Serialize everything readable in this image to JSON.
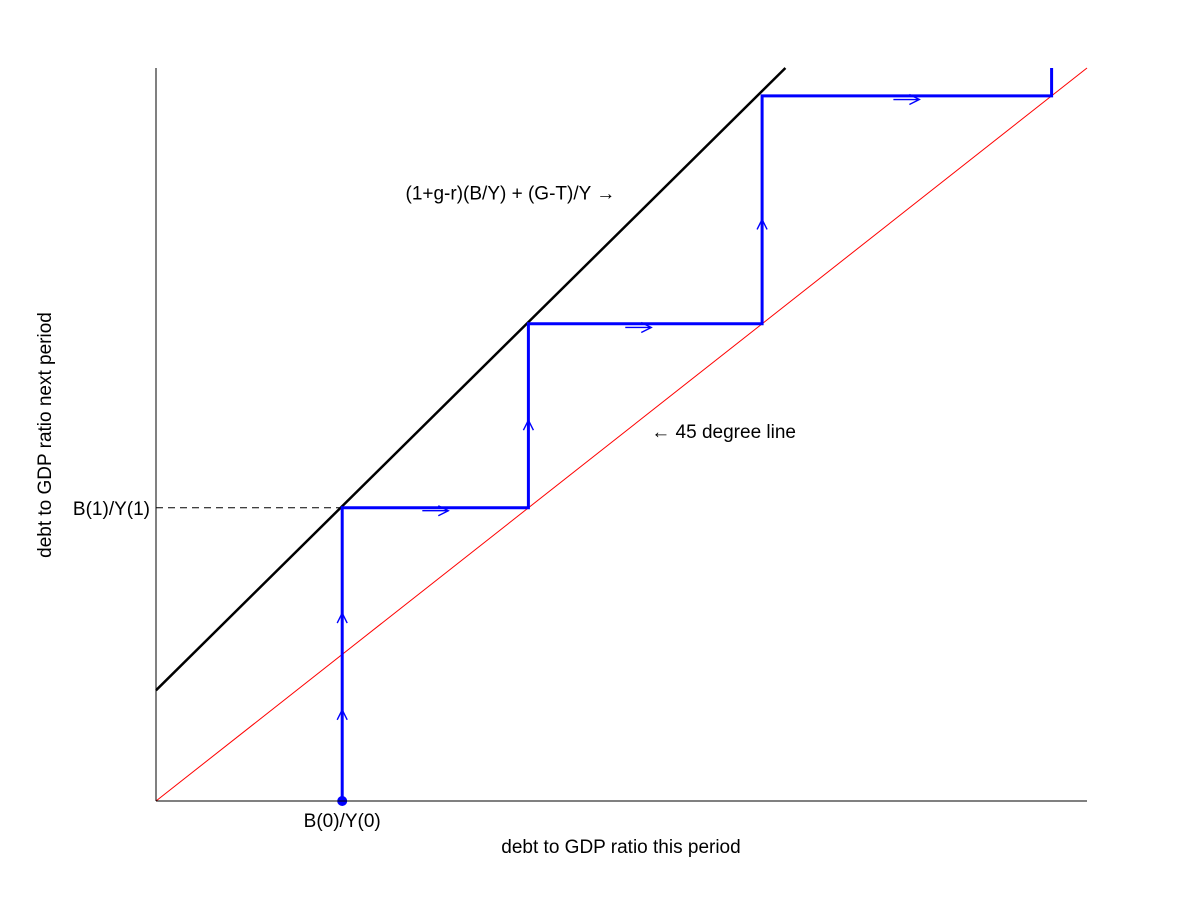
{
  "chart_data": {
    "type": "line",
    "title": "",
    "xlabel": "debt to GDP ratio this period",
    "ylabel": "debt to GDP ratio next period",
    "xlim": [
      0,
      1
    ],
    "ylim": [
      0,
      1
    ],
    "grid": false,
    "x_ticks": [
      {
        "x": 0.2,
        "label": "B(0)/Y(0)"
      }
    ],
    "y_ticks": [
      {
        "y": 0.4,
        "label": "B(1)/Y(1)"
      }
    ],
    "series": [
      {
        "id": "law-of-motion",
        "color": "#000000",
        "x": [
          0,
          0.676
        ],
        "y": [
          0.151,
          1.0
        ]
      },
      {
        "id": "forty-five",
        "color": "#ff0000",
        "x": [
          0,
          1
        ],
        "y": [
          0,
          1
        ]
      },
      {
        "id": "cobweb",
        "color": "#0000ff",
        "x": [
          0.2,
          0.2,
          0.4,
          0.4,
          0.651,
          0.651,
          0.962,
          0.962
        ],
        "y": [
          0,
          0.4,
          0.4,
          0.651,
          0.651,
          0.962,
          0.962,
          1.0
        ]
      }
    ],
    "reference_line": {
      "x": [
        0,
        0.2
      ],
      "y": [
        0.4,
        0.4
      ],
      "style": "dashed",
      "color": "#000000"
    },
    "start_point": {
      "x": 0.2,
      "y": 0
    },
    "arrows": [
      {
        "x": 0.2,
        "y": 0.119,
        "dir": "up"
      },
      {
        "x": 0.2,
        "y": 0.251,
        "dir": "up"
      },
      {
        "x": 0.4,
        "y": 0.514,
        "dir": "up"
      },
      {
        "x": 0.651,
        "y": 0.788,
        "dir": "up"
      },
      {
        "x": 0.3,
        "y": 0.396,
        "dir": "right"
      },
      {
        "x": 0.518,
        "y": 0.646,
        "dir": "right"
      },
      {
        "x": 0.806,
        "y": 0.957,
        "dir": "right"
      }
    ],
    "annotations": [
      {
        "id": "curve-label",
        "text": "(1+g-r)(B/Y) + (G-T)/Y →",
        "x": 0.268,
        "y": 0.83
      },
      {
        "id": "forty-five-label",
        "text": "← 45 degree line",
        "x": 0.532,
        "y": 0.505
      }
    ]
  }
}
